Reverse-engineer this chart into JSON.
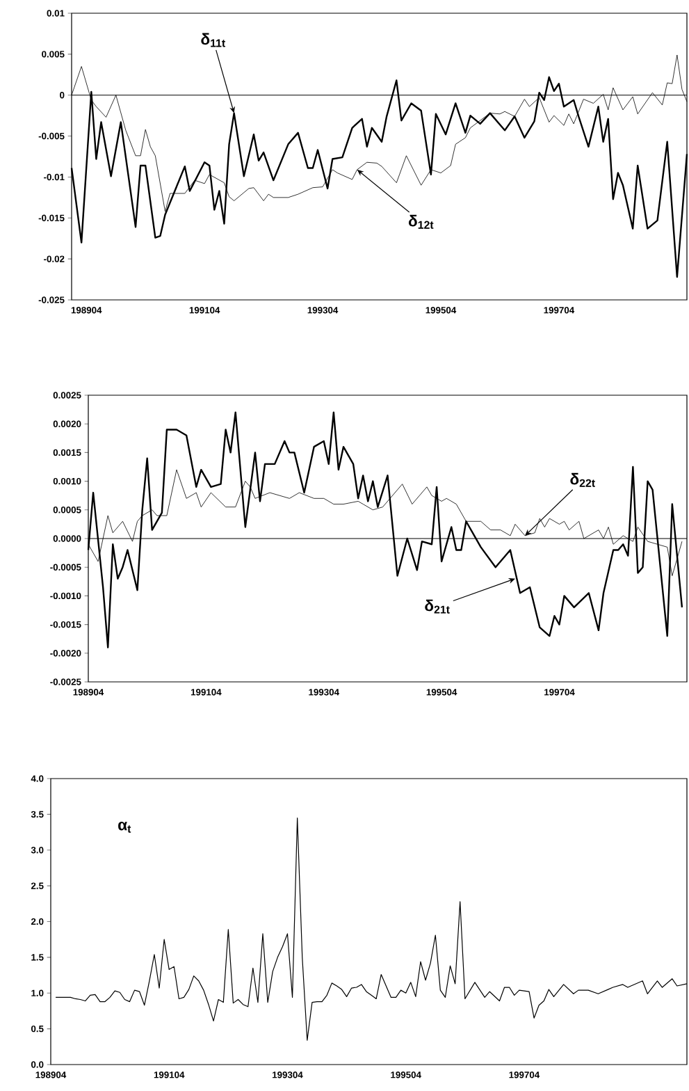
{
  "chart_data": [
    {
      "type": "line",
      "xlim": [
        "1989-01",
        "1999-06"
      ],
      "ylim": [
        -0.025,
        0.01
      ],
      "xticks": [
        {
          "value": "1989-04",
          "label": "198904"
        },
        {
          "value": "1991-04",
          "label": "199104"
        },
        {
          "value": "1993-04",
          "label": "199304"
        },
        {
          "value": "1995-04",
          "label": "199504"
        },
        {
          "value": "1997-04",
          "label": "199704"
        }
      ],
      "yticks": [
        0.01,
        0.005,
        0,
        -0.005,
        -0.01,
        -0.015,
        -0.02,
        -0.025
      ],
      "ref_lines": [
        {
          "axis": "y",
          "value": 0
        }
      ],
      "annotations": [
        {
          "text": "δ$_{11t}$",
          "x": "1991-10",
          "y": -0.0022
        },
        {
          "text": "δ$_{12t}$",
          "x": "1993-11",
          "y": -0.0091
        }
      ],
      "series": [
        {
          "color": "#000000",
          "x": [
            "1989-01",
            "1989-03",
            "1989-05",
            "1989-06",
            "1989-07",
            "1989-09",
            "1989-11",
            "1990-02",
            "1990-03",
            "1990-04",
            "1990-06",
            "1990-07",
            "1990-08",
            "1990-12",
            "1991-01",
            "1991-04",
            "1991-05",
            "1991-06",
            "1991-07",
            "1991-08",
            "1991-09",
            "1991-10",
            "1991-12",
            "1992-02",
            "1992-03",
            "1992-04",
            "1992-06",
            "1992-09",
            "1992-11",
            "1993-01",
            "1993-02",
            "1993-03",
            "1993-05",
            "1993-06",
            "1993-08",
            "1993-10",
            "1993-12",
            "1994-01",
            "1994-02",
            "1994-04",
            "1994-05",
            "1994-07",
            "1994-08",
            "1994-10",
            "1994-12",
            "1995-02",
            "1995-03",
            "1995-05",
            "1995-07",
            "1995-09",
            "1995-10",
            "1995-12",
            "1996-02",
            "1996-05",
            "1996-07",
            "1996-09",
            "1996-11",
            "1996-12",
            "1997-01",
            "1997-02",
            "1997-03",
            "1997-04",
            "1997-05",
            "1997-07",
            "1997-08",
            "1997-10",
            "1997-12",
            "1998-01",
            "1998-02",
            "1998-03",
            "1998-04",
            "1998-05",
            "1998-07",
            "1998-08",
            "1998-10",
            "1998-12",
            "1999-02",
            "1999-04",
            "1999-06"
          ],
          "values": [
            -0.0089,
            -0.018,
            0.0004,
            -0.0078,
            -0.0033,
            -0.0099,
            -0.0033,
            -0.0161,
            -0.0086,
            -0.0086,
            -0.0174,
            -0.0172,
            -0.0146,
            -0.0087,
            -0.0117,
            -0.0082,
            -0.0086,
            -0.014,
            -0.0117,
            -0.0157,
            -0.006,
            -0.0022,
            -0.0099,
            -0.0048,
            -0.008,
            -0.007,
            -0.0104,
            -0.006,
            -0.0046,
            -0.0089,
            -0.0089,
            -0.0067,
            -0.0114,
            -0.0078,
            -0.0076,
            -0.004,
            -0.0029,
            -0.0063,
            -0.004,
            -0.0057,
            -0.0026,
            0.0018,
            -0.0031,
            -0.001,
            -0.0019,
            -0.0097,
            -0.0023,
            -0.0048,
            -0.001,
            -0.0046,
            -0.0025,
            -0.0035,
            -0.0022,
            -0.0043,
            -0.0026,
            -0.0052,
            -0.0032,
            0.0003,
            -0.0006,
            0.0022,
            0.0005,
            0.0014,
            -0.0014,
            -0.0006,
            -0.0026,
            -0.0063,
            -0.0014,
            -0.0057,
            -0.0029,
            -0.0127,
            -0.0095,
            -0.011,
            -0.0163,
            -0.0086,
            -0.0163,
            -0.0153,
            -0.0057,
            -0.0222,
            -0.0072
          ]
        },
        {
          "color": "#000000",
          "x": [
            "1989-01",
            "1989-03",
            "1989-05",
            "1989-06",
            "1989-08",
            "1989-10",
            "1989-12",
            "1990-02",
            "1990-03",
            "1990-04",
            "1990-05",
            "1990-06",
            "1990-08",
            "1990-09",
            "1990-12",
            "1991-02",
            "1991-04",
            "1991-05",
            "1991-08",
            "1991-09",
            "1991-10",
            "1992-01",
            "1992-02",
            "1992-04",
            "1992-05",
            "1992-06",
            "1992-09",
            "1992-11",
            "1993-02",
            "1993-04",
            "1993-06",
            "1993-07",
            "1993-10",
            "1993-11",
            "1994-01",
            "1994-03",
            "1994-04",
            "1994-07",
            "1994-09",
            "1994-12",
            "1995-02",
            "1995-04",
            "1995-06",
            "1995-07",
            "1995-09",
            "1995-10",
            "1996-02",
            "1996-04",
            "1996-05",
            "1996-07",
            "1996-09",
            "1996-10",
            "1996-12",
            "1997-02",
            "1997-03",
            "1997-05",
            "1997-06",
            "1997-07",
            "1997-09",
            "1997-11",
            "1998-01",
            "1998-02",
            "1998-03",
            "1998-05",
            "1998-07",
            "1998-08",
            "1998-11",
            "1999-01",
            "1999-02",
            "1999-03",
            "1999-04",
            "1999-05",
            "1999-06"
          ],
          "values": [
            0,
            0.0035,
            -0.0006,
            -0.0014,
            -0.0027,
            0,
            -0.0043,
            -0.0074,
            -0.0074,
            -0.0042,
            -0.0063,
            -0.0074,
            -0.0142,
            -0.012,
            -0.012,
            -0.0104,
            -0.0108,
            -0.0097,
            -0.0107,
            -0.0124,
            -0.0129,
            -0.0114,
            -0.0113,
            -0.0129,
            -0.0121,
            -0.0125,
            -0.0125,
            -0.0121,
            -0.0113,
            -0.0112,
            -0.0091,
            -0.0095,
            -0.0103,
            -0.0091,
            -0.0082,
            -0.0083,
            -0.0087,
            -0.0107,
            -0.0074,
            -0.011,
            -0.0091,
            -0.0095,
            -0.0086,
            -0.006,
            -0.0052,
            -0.004,
            -0.0022,
            -0.0023,
            -0.002,
            -0.0026,
            -0.0005,
            -0.0014,
            -0.0003,
            -0.0033,
            -0.0025,
            -0.0037,
            -0.0023,
            -0.0035,
            -0.0005,
            -0.001,
            0.0001,
            -0.0018,
            0.0009,
            -0.0018,
            -0.0002,
            -0.0023,
            0.0003,
            -0.0012,
            0.0015,
            0.0014,
            0.0049,
            0.0007,
            -0.0008
          ]
        }
      ]
    },
    {
      "type": "line",
      "xlim": [
        "1989-04",
        "1999-06"
      ],
      "ylim": [
        -0.0025,
        0.0025
      ],
      "xticks": [
        {
          "value": "1989-04",
          "label": "198904"
        },
        {
          "value": "1991-04",
          "label": "199104"
        },
        {
          "value": "1993-04",
          "label": "199304"
        },
        {
          "value": "1995-04",
          "label": "199504"
        },
        {
          "value": "1997-04",
          "label": "199704"
        }
      ],
      "yticks": [
        0.0025,
        {
          "value": 0.002,
          "label": "0.0020"
        },
        0.0015,
        {
          "value": 0.001,
          "label": "0.0010"
        },
        0.0005,
        {
          "value": 0,
          "label": "0.0000"
        },
        -0.0005,
        {
          "value": -0.001,
          "label": "-0.0010"
        },
        -0.0015,
        {
          "value": -0.002,
          "label": "-0.0020"
        },
        -0.0025
      ],
      "ref_lines": [
        {
          "axis": "y",
          "value": 0
        }
      ],
      "annotations": [
        {
          "text": "δ$_{22t}$",
          "x": "1996-09",
          "y": 5e-05
        },
        {
          "text": "δ$_{21t}$",
          "x": "1996-07",
          "y": -0.0007
        }
      ],
      "series": [
        {
          "color": "#000000",
          "x": [
            "1989-04",
            "1989-05",
            "1989-07",
            "1989-08",
            "1989-09",
            "1989-10",
            "1989-11",
            "1989-12",
            "1990-02",
            "1990-03",
            "1990-04",
            "1990-05",
            "1990-07",
            "1990-08",
            "1990-10",
            "1990-12",
            "1991-02",
            "1991-03",
            "1991-05",
            "1991-07",
            "1991-08",
            "1991-09",
            "1991-10",
            "1991-12",
            "1992-02",
            "1992-03",
            "1992-04",
            "1992-06",
            "1992-08",
            "1992-09",
            "1992-10",
            "1992-12",
            "1993-02",
            "1993-04",
            "1993-05",
            "1993-06",
            "1993-07",
            "1993-08",
            "1993-10",
            "1993-11",
            "1993-12",
            "1994-01",
            "1994-02",
            "1994-03",
            "1994-05",
            "1994-07",
            "1994-09",
            "1994-11",
            "1994-12",
            "1995-02",
            "1995-03",
            "1995-04",
            "1995-06",
            "1995-07",
            "1995-08",
            "1995-09",
            "1995-12",
            "1996-03",
            "1996-04",
            "1996-06",
            "1996-08",
            "1996-10",
            "1996-12",
            "1997-02",
            "1997-03",
            "1997-04",
            "1997-05",
            "1997-07",
            "1997-10",
            "1997-12",
            "1998-01",
            "1998-03",
            "1998-04",
            "1998-05",
            "1998-06",
            "1998-07",
            "1998-08",
            "1998-09",
            "1998-10",
            "1998-11",
            "1999-02",
            "1999-03",
            "1999-05"
          ],
          "values": [
            -0.0002,
            0.0008,
            -0.00085,
            -0.0019,
            -0.0001,
            -0.0007,
            -0.0005,
            -0.0002,
            -0.0009,
            0.0005,
            0.0014,
            0.00015,
            0.00045,
            0.0019,
            0.0019,
            0.0018,
            0.0009,
            0.0012,
            0.0009,
            0.00095,
            0.0019,
            0.0015,
            0.0022,
            0.0002,
            0.0015,
            0.00065,
            0.0013,
            0.0013,
            0.0017,
            0.0015,
            0.0015,
            0.0008,
            0.0016,
            0.0017,
            0.0013,
            0.0022,
            0.0012,
            0.0016,
            0.0013,
            0.0007,
            0.0011,
            0.00065,
            0.001,
            0.00055,
            0.0011,
            -0.00065,
            0,
            -0.00055,
            -5e-05,
            -0.0001,
            0.0009,
            -0.0004,
            0.0002,
            -0.0002,
            -0.0002,
            0.0003,
            -0.00015,
            -0.0005,
            -0.0004,
            -0.0002,
            -0.00095,
            -0.00085,
            -0.00155,
            -0.0017,
            -0.00135,
            -0.0015,
            -0.001,
            -0.0012,
            -0.00095,
            -0.0016,
            -0.00095,
            -0.0002,
            -0.0002,
            -0.0001,
            -0.0003,
            0.00125,
            -0.0006,
            -0.0005,
            0.001,
            0.00085,
            -0.0017,
            0.0006,
            -0.0012
          ]
        },
        {
          "color": "#000000",
          "x": [
            "1989-04",
            "1989-06",
            "1989-08",
            "1989-09",
            "1989-11",
            "1990-01",
            "1990-02",
            "1990-03",
            "1990-05",
            "1990-06",
            "1990-08",
            "1990-10",
            "1990-12",
            "1991-02",
            "1991-03",
            "1991-05",
            "1991-08",
            "1991-10",
            "1991-12",
            "1992-01",
            "1992-02",
            "1992-05",
            "1992-07",
            "1992-09",
            "1992-11",
            "1993-02",
            "1993-04",
            "1993-06",
            "1993-08",
            "1993-11",
            "1993-12",
            "1994-02",
            "1994-04",
            "1994-06",
            "1994-08",
            "1994-10",
            "1994-11",
            "1995-01",
            "1995-02",
            "1995-04",
            "1995-05",
            "1995-07",
            "1995-09",
            "1995-12",
            "1996-02",
            "1996-04",
            "1996-06",
            "1996-07",
            "1996-09",
            "1996-11",
            "1996-12",
            "1997-01",
            "1997-02",
            "1997-04",
            "1997-05",
            "1997-06",
            "1997-08",
            "1997-09",
            "1997-12",
            "1998-01",
            "1998-02",
            "1998-03",
            "1998-05",
            "1998-07",
            "1998-08",
            "1998-10",
            "1998-12",
            "1999-02",
            "1999-03",
            "1999-05"
          ],
          "values": [
            -0.0001,
            -0.0004,
            0.0004,
            0.0001,
            0.0003,
            -5e-05,
            0.0003,
            0.0004,
            0.0005,
            0.0004,
            0.0004,
            0.0012,
            0.0007,
            0.0008,
            0.00055,
            0.0008,
            0.00055,
            0.00055,
            0.001,
            0.0009,
            0.0007,
            0.0008,
            0.00075,
            0.0007,
            0.0008,
            0.0007,
            0.0007,
            0.0006,
            0.0006,
            0.00065,
            0.0006,
            0.0005,
            0.00055,
            0.00075,
            0.00095,
            0.0006,
            0.0007,
            0.0009,
            0.00075,
            0.00065,
            0.0007,
            0.0006,
            0.0003,
            0.0003,
            0.00015,
            0.00015,
            5e-05,
            0.00025,
            5e-05,
            0.0001,
            0.00035,
            0.0002,
            0.00035,
            0.00025,
            0.0003,
            0.00015,
            0.0003,
            0,
            0.00015,
            0,
            0.0002,
            -0.0001,
            5e-05,
            -5e-05,
            0.0002,
            -5e-05,
            -0.0001,
            -0.00015,
            -0.00065,
            -5e-05
          ]
        }
      ]
    },
    {
      "type": "line",
      "xlim": [
        "1989-04",
        "2000-01"
      ],
      "ylim": [
        0,
        4
      ],
      "xticks": [
        {
          "value": "1989-04",
          "label": "198904"
        },
        {
          "value": "1991-04",
          "label": "199104"
        },
        {
          "value": "1993-04",
          "label": "199304"
        },
        {
          "value": "1995-04",
          "label": "199504"
        },
        {
          "value": "1997-04",
          "label": "199704"
        }
      ],
      "yticks": [
        {
          "value": 4,
          "label": "4.0"
        },
        3.5,
        {
          "value": 3,
          "label": "3.0"
        },
        2.5,
        {
          "value": 2,
          "label": "2.0"
        },
        1.5,
        {
          "value": 1,
          "label": "1.0"
        },
        0.5,
        {
          "value": 0,
          "label": "0.0"
        }
      ],
      "annotations": [
        "α$_{t}$"
      ],
      "series": [
        {
          "color": "#000000",
          "x": [
            "1989-05",
            "1989-06",
            "1989-07",
            "1989-08",
            "1989-09",
            "1989-10",
            "1989-11",
            "1989-12",
            "1990-01",
            "1990-02",
            "1990-03",
            "1990-04",
            "1990-05",
            "1990-06",
            "1990-07",
            "1990-08",
            "1990-09",
            "1990-10",
            "1990-11",
            "1990-12",
            "1991-01",
            "1991-02",
            "1991-03",
            "1991-04",
            "1991-05",
            "1991-06",
            "1991-07",
            "1991-08",
            "1991-09",
            "1991-10",
            "1991-11",
            "1991-12",
            "1992-01",
            "1992-02",
            "1992-03",
            "1992-04",
            "1992-05",
            "1992-06",
            "1992-07",
            "1992-08",
            "1992-09",
            "1992-10",
            "1992-11",
            "1992-12",
            "1993-01",
            "1993-02",
            "1993-03",
            "1993-04",
            "1993-05",
            "1993-06",
            "1993-07",
            "1993-08",
            "1993-09",
            "1993-10",
            "1993-11",
            "1993-12",
            "1994-01",
            "1994-02",
            "1994-03",
            "1994-04",
            "1994-05",
            "1994-06",
            "1994-07",
            "1994-08",
            "1994-09",
            "1994-10",
            "1994-11",
            "1995-01",
            "1995-02",
            "1995-03",
            "1995-04",
            "1995-05",
            "1995-06",
            "1995-07",
            "1995-08",
            "1995-09",
            "1995-10",
            "1995-11",
            "1995-12",
            "1996-01",
            "1996-02",
            "1996-03",
            "1996-04",
            "1996-06",
            "1996-08",
            "1996-09",
            "1996-11",
            "1996-12",
            "1997-01",
            "1997-02",
            "1997-03",
            "1997-05",
            "1997-06",
            "1997-07",
            "1997-08",
            "1997-09",
            "1997-10",
            "1997-12",
            "1998-02",
            "1998-03",
            "1998-05",
            "1998-07",
            "1998-09",
            "1998-10",
            "1998-12",
            "1999-01",
            "1999-04",
            "1999-05",
            "1999-07",
            "1999-08",
            "1999-10",
            "1999-11",
            "2000-01"
          ],
          "values": [
            0.94,
            0.94,
            0.94,
            0.94,
            0.92,
            0.91,
            0.89,
            0.97,
            0.98,
            0.88,
            0.88,
            0.94,
            1.03,
            1.01,
            0.91,
            0.88,
            1.04,
            1.02,
            0.83,
            1.17,
            1.54,
            1.07,
            1.75,
            1.33,
            1.37,
            0.92,
            0.94,
            1.05,
            1.24,
            1.17,
            1.04,
            0.84,
            0.61,
            0.91,
            0.87,
            1.89,
            0.86,
            0.91,
            0.84,
            0.81,
            1.35,
            0.87,
            1.83,
            0.87,
            1.3,
            1.5,
            1.65,
            1.83,
            0.94,
            3.45,
            1.5,
            0.34,
            0.87,
            0.88,
            0.88,
            0.97,
            1.14,
            1.1,
            1.05,
            0.95,
            1.07,
            1.08,
            1.12,
            1.02,
            0.97,
            0.92,
            1.26,
            0.94,
            0.94,
            1.04,
            1.0,
            1.15,
            0.95,
            1.44,
            1.18,
            1.42,
            1.81,
            1.04,
            0.94,
            1.38,
            1.13,
            2.28,
            0.92,
            1.15,
            0.94,
            1.02,
            0.89,
            1.08,
            1.08,
            0.97,
            1.04,
            1.02,
            0.65,
            0.83,
            0.89,
            1.05,
            0.95,
            1.12,
            0.99,
            1.04,
            1.04,
            0.99,
            1.05,
            1.08,
            1.12,
            1.08,
            1.17,
            0.99,
            1.17,
            1.08,
            1.2,
            1.1,
            1.13
          ]
        }
      ]
    }
  ]
}
